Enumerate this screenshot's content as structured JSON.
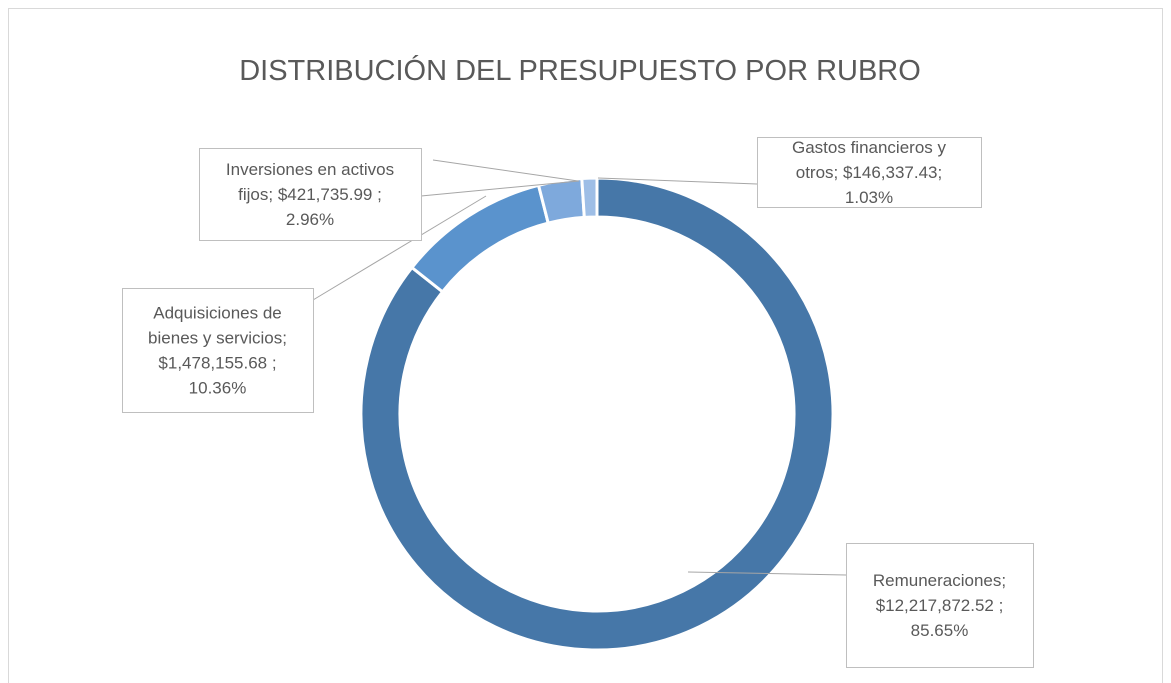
{
  "chart_data": {
    "type": "donut",
    "title": "DISTRIBUCIÓN DEL PRESUPUESTO POR RUBRO",
    "values": [
      12217872.52,
      1478155.68,
      421735.99,
      146337.43
    ],
    "labels": [
      [
        "Remuneraciones;",
        "$12,217,872.52 ;",
        "85.65%"
      ],
      [
        "Adquisiciones de",
        "bienes y servicios;",
        "$1,478,155.68 ;",
        "10.36%"
      ],
      [
        "Inversiones en activos",
        "fijos; $421,735.99 ;",
        "2.96%"
      ],
      [
        "Gastos financieros y",
        "otros; $146,337.43;",
        "1.03%"
      ]
    ],
    "colors": [
      "#4677a8",
      "#5a93cd",
      "#7ea9dc",
      "#9ebee6"
    ]
  }
}
